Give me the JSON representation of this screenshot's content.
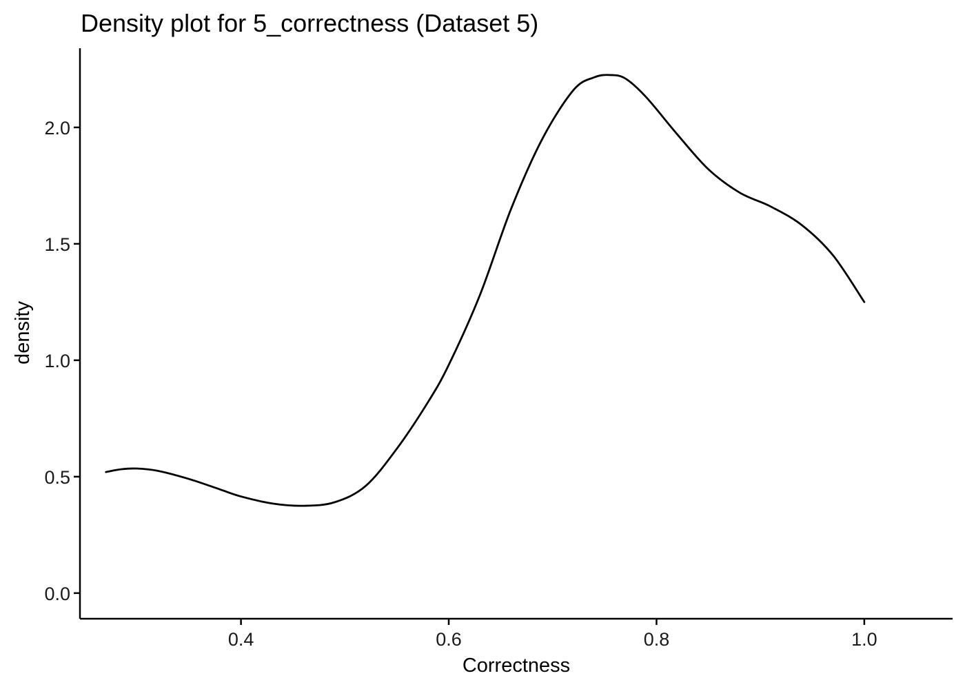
{
  "chart_data": {
    "type": "line",
    "title": "Density plot for 5_correctness (Dataset 5)",
    "xlabel": "Correctness",
    "ylabel": "density",
    "xlim": [
      0.245,
      1.085
    ],
    "ylim": [
      -0.11,
      2.34
    ],
    "x_ticks": [
      0.4,
      0.6,
      0.8,
      1.0
    ],
    "x_tick_labels": [
      "0.4",
      "0.6",
      "0.8",
      "1.0"
    ],
    "y_ticks": [
      0.0,
      0.5,
      1.0,
      1.5,
      2.0
    ],
    "y_tick_labels": [
      "0.0",
      "0.5",
      "1.0",
      "1.5",
      "2.0"
    ],
    "grid": false,
    "legend": "none",
    "series": [
      {
        "color": "#000000",
        "x": [
          0.27,
          0.285,
          0.3,
          0.32,
          0.35,
          0.38,
          0.4,
          0.43,
          0.46,
          0.49,
          0.52,
          0.55,
          0.58,
          0.6,
          0.63,
          0.66,
          0.69,
          0.72,
          0.74,
          0.755,
          0.77,
          0.79,
          0.82,
          0.85,
          0.88,
          0.91,
          0.94,
          0.97,
          1.0
        ],
        "y": [
          0.52,
          0.532,
          0.535,
          0.525,
          0.49,
          0.445,
          0.415,
          0.385,
          0.375,
          0.39,
          0.46,
          0.62,
          0.82,
          0.98,
          1.28,
          1.65,
          1.95,
          2.16,
          2.215,
          2.225,
          2.21,
          2.13,
          1.97,
          1.82,
          1.72,
          1.66,
          1.58,
          1.45,
          1.25
        ]
      }
    ]
  }
}
